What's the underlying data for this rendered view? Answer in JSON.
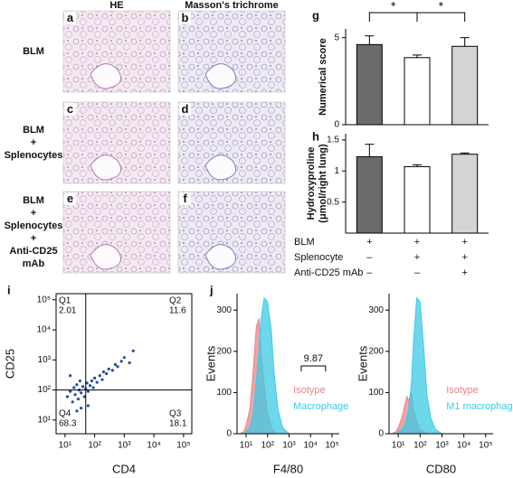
{
  "micrographs": {
    "columns": [
      "HE",
      "Masson's trichrome"
    ],
    "rows": [
      [
        "BLM"
      ],
      [
        "BLM",
        "+",
        "Splenocytes"
      ],
      [
        "BLM",
        "+",
        "Splenocytes",
        "+",
        "Anti-CD25",
        "mAb"
      ]
    ],
    "panels": [
      "a",
      "b",
      "c",
      "d",
      "e",
      "f"
    ]
  },
  "conditions": [
    {
      "label": "BLM",
      "marks": [
        "+",
        "+",
        "+"
      ]
    },
    {
      "label": "Splenocyte",
      "marks": [
        "–",
        "+",
        "+"
      ]
    },
    {
      "label": "Anti-CD25 mAb",
      "marks": [
        "–",
        "–",
        "+"
      ]
    }
  ],
  "chart_data": [
    {
      "type": "bar",
      "panel": "g",
      "y_label": [
        "Numerical score"
      ],
      "values": [
        4.6,
        3.85,
        4.5
      ],
      "errors": [
        0.5,
        0.15,
        0.5
      ],
      "colors": [
        "#6b6b6b",
        "#ffffff",
        "#d4d4d4"
      ],
      "ylim": [
        0,
        5.5
      ],
      "yticks": [
        0,
        5
      ],
      "significance": [
        {
          "between": [
            0,
            1
          ],
          "label": "*"
        },
        {
          "between": [
            1,
            2
          ],
          "label": "*"
        }
      ]
    },
    {
      "type": "bar",
      "panel": "h",
      "y_label": [
        "Hydroxyproline",
        "(μmol/right lung)"
      ],
      "values": [
        1.23,
        1.07,
        1.27
      ],
      "errors": [
        0.2,
        0.03,
        0.02
      ],
      "colors": [
        "#6b6b6b",
        "#ffffff",
        "#d4d4d4"
      ],
      "ylim": [
        0,
        1.6
      ],
      "yticks": [
        0.5,
        1,
        1.5
      ]
    },
    {
      "type": "scatter",
      "panel": "i",
      "x_label": "CD4",
      "y_label": "CD25",
      "log_x": true,
      "log_y": true,
      "xlim": [
        5,
        190000
      ],
      "ylim": [
        3.5,
        160000
      ],
      "xticks": [
        {
          "value": 10,
          "label": "10¹"
        },
        {
          "value": 100,
          "label": "10²"
        },
        {
          "value": 1000,
          "label": "10³"
        },
        {
          "value": 10000,
          "label": "10⁴"
        },
        {
          "value": 100000,
          "label": "10⁵"
        }
      ],
      "yticks": [
        {
          "value": 10,
          "label": "10¹"
        },
        {
          "value": 100,
          "label": "10²"
        },
        {
          "value": 1000,
          "label": "10³"
        },
        {
          "value": 10000,
          "label": "10⁴"
        },
        {
          "value": 100000,
          "label": "10⁵"
        }
      ],
      "x": [
        12,
        15,
        18,
        20,
        22,
        25,
        28,
        30,
        32,
        35,
        40,
        45,
        50,
        55,
        60,
        70,
        80,
        90,
        100,
        120,
        150,
        180,
        200,
        250,
        300,
        400,
        500,
        600,
        800,
        1000,
        1500,
        2000,
        25,
        35,
        60,
        15
      ],
      "y": [
        60,
        90,
        40,
        120,
        70,
        150,
        50,
        100,
        200,
        80,
        130,
        60,
        110,
        170,
        90,
        140,
        200,
        120,
        250,
        180,
        300,
        220,
        400,
        350,
        500,
        450,
        700,
        600,
        900,
        1200,
        800,
        2000,
        20,
        25,
        30,
        300
      ],
      "color": "#1f4e9c",
      "gates": {
        "x": 50,
        "y": 100
      },
      "quadrants": [
        {
          "name": "Q1",
          "value": 2.01
        },
        {
          "name": "Q2",
          "value": 11.6
        },
        {
          "name": "Q3",
          "value": 18.1
        },
        {
          "name": "Q4",
          "value": 68.3
        }
      ]
    },
    {
      "type": "area",
      "panel": "j",
      "x_label": "F4/80",
      "y_label": "Events",
      "log_x": true,
      "xlim": [
        3.8,
        218000
      ],
      "ylim": [
        0,
        340
      ],
      "xticks": [
        {
          "value": 10,
          "label": "10¹"
        },
        {
          "value": 100,
          "label": "10²"
        },
        {
          "value": 1000,
          "label": "10³"
        },
        {
          "value": 10000,
          "label": "10⁴"
        },
        {
          "value": 100000,
          "label": "10⁵"
        }
      ],
      "yticks": [
        0,
        100,
        200,
        300
      ],
      "x": [
        5,
        8,
        10,
        15,
        20,
        25,
        30,
        40,
        50,
        70,
        100,
        150,
        200,
        300,
        500,
        1000
      ],
      "series": [
        {
          "name": "Isotype",
          "color": "#e8858a",
          "values": [
            0,
            5,
            20,
            60,
            130,
            200,
            260,
            280,
            200,
            120,
            50,
            15,
            5,
            0,
            0,
            0
          ]
        },
        {
          "name": "Macrophage",
          "color": "#3ccbe6",
          "values": [
            0,
            0,
            5,
            15,
            40,
            80,
            130,
            200,
            280,
            330,
            320,
            250,
            150,
            60,
            15,
            0
          ]
        }
      ],
      "gate": {
        "range": [
          3700,
          50000
        ],
        "label": 9.87
      }
    },
    {
      "type": "area",
      "x_label": "CD80",
      "y_label": "Events",
      "log_x": true,
      "xlim": [
        3.8,
        218000
      ],
      "ylim": [
        0,
        340
      ],
      "xticks": [
        {
          "value": 10,
          "label": "10¹"
        },
        {
          "value": 100,
          "label": "10²"
        },
        {
          "value": 1000,
          "label": "10³"
        },
        {
          "value": 10000,
          "label": "10⁴"
        },
        {
          "value": 100000,
          "label": "10⁵"
        }
      ],
      "yticks": [
        0,
        100,
        200,
        300
      ],
      "x": [
        5,
        8,
        10,
        15,
        20,
        25,
        30,
        40,
        50,
        70,
        100,
        150,
        200,
        300,
        500,
        1000
      ],
      "series": [
        {
          "name": "Isotype",
          "color": "#e8858a",
          "values": [
            0,
            5,
            15,
            40,
            70,
            90,
            80,
            100,
            60,
            30,
            10,
            5,
            0,
            0,
            0,
            0
          ]
        },
        {
          "name": "M1 macrophage",
          "color": "#3ccbe6",
          "values": [
            0,
            0,
            5,
            10,
            20,
            40,
            60,
            120,
            220,
            330,
            320,
            200,
            100,
            40,
            10,
            0
          ]
        }
      ]
    }
  ]
}
